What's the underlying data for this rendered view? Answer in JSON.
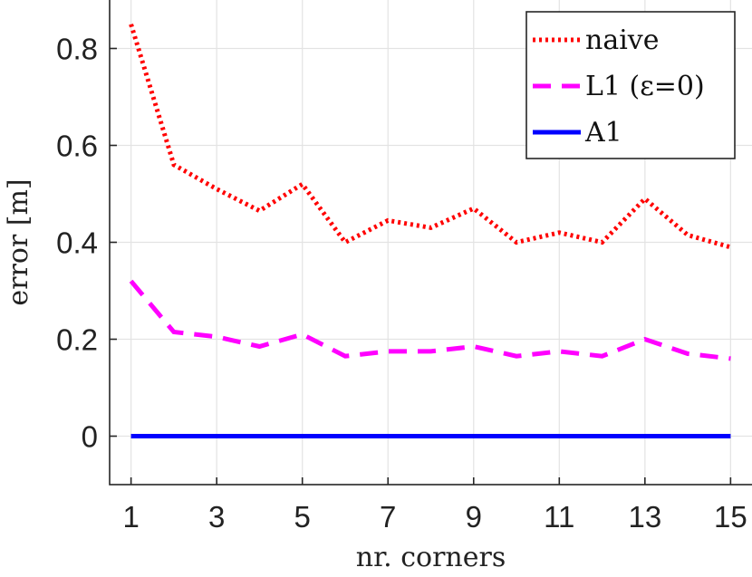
{
  "chart_data": {
    "type": "line",
    "xlabel": "nr. corners",
    "ylabel": "error [m]",
    "xlim": [
      0.5,
      15.5
    ],
    "ylim": [
      -0.1,
      0.9
    ],
    "xticks": [
      1,
      3,
      5,
      7,
      9,
      11,
      13,
      15
    ],
    "yticks": [
      0,
      0.2,
      0.4,
      0.6,
      0.8
    ],
    "xtick_labels": [
      "1",
      "3",
      "5",
      "7",
      "9",
      "11",
      "13",
      "15"
    ],
    "ytick_labels": [
      "0",
      "0.2",
      "0.4",
      "0.6",
      "0.8"
    ],
    "grid": true,
    "legend_position": "top-right",
    "x": [
      1,
      2,
      3,
      4,
      5,
      6,
      7,
      8,
      9,
      10,
      11,
      12,
      13,
      14,
      15
    ],
    "series": [
      {
        "name": "naive",
        "color": "#ff0000",
        "style": "dotted",
        "values": [
          0.85,
          0.56,
          0.51,
          0.465,
          0.52,
          0.4,
          0.445,
          0.43,
          0.47,
          0.4,
          0.42,
          0.4,
          0.49,
          0.415,
          0.39
        ]
      },
      {
        "name": "L1 (ε=0)",
        "color": "#ff00ff",
        "style": "dashed",
        "values": [
          0.32,
          0.215,
          0.205,
          0.185,
          0.21,
          0.165,
          0.175,
          0.175,
          0.185,
          0.165,
          0.175,
          0.165,
          0.2,
          0.17,
          0.16
        ]
      },
      {
        "name": "A1",
        "color": "#0000ff",
        "style": "solid",
        "values": [
          0,
          0,
          0,
          0,
          0,
          0,
          0,
          0,
          0,
          0,
          0,
          0,
          0,
          0,
          0
        ]
      }
    ]
  }
}
